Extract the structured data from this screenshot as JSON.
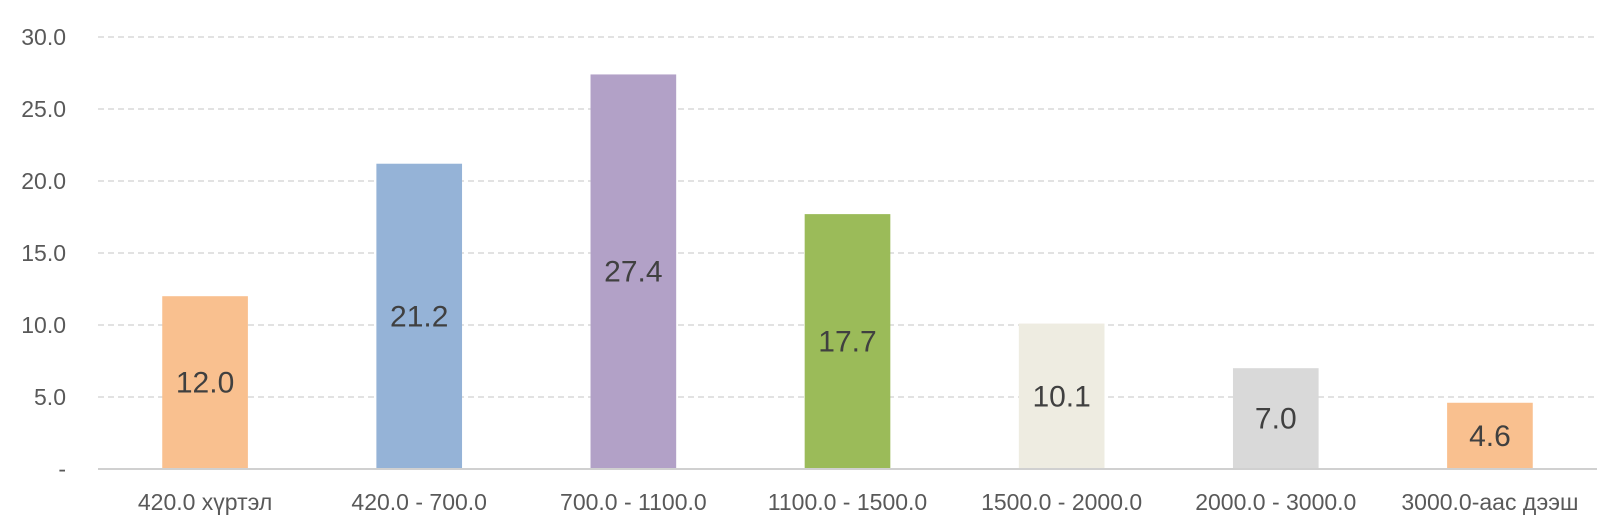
{
  "chart_data": {
    "type": "bar",
    "title": "",
    "xlabel": "",
    "ylabel": "",
    "categories": [
      "420.0 хүртэл",
      "420.0 - 700.0",
      "700.0 - 1100.0",
      "1100.0 - 1500.0",
      "1500.0 - 2000.0",
      "2000.0 - 3000.0",
      "3000.0-аас дээш"
    ],
    "values": [
      12.0,
      21.2,
      27.4,
      17.7,
      10.1,
      7.0,
      4.6
    ],
    "data_labels": [
      "12.0",
      "21.2",
      "27.4",
      "17.7",
      "10.1",
      "7.0",
      "4.6"
    ],
    "colors": [
      "#f9c08f",
      "#95b3d7",
      "#b2a1c7",
      "#9bbb59",
      "#eeece1",
      "#d9d9d9",
      "#f9c08f"
    ],
    "ylim": [
      0,
      30
    ],
    "yticks": [
      0,
      5,
      10,
      15,
      20,
      25,
      30
    ],
    "ytick_labels": [
      "-",
      "5.0",
      "10.0",
      "15.0",
      "20.0",
      "25.0",
      "30.0"
    ],
    "grid": true,
    "legend": "none"
  }
}
